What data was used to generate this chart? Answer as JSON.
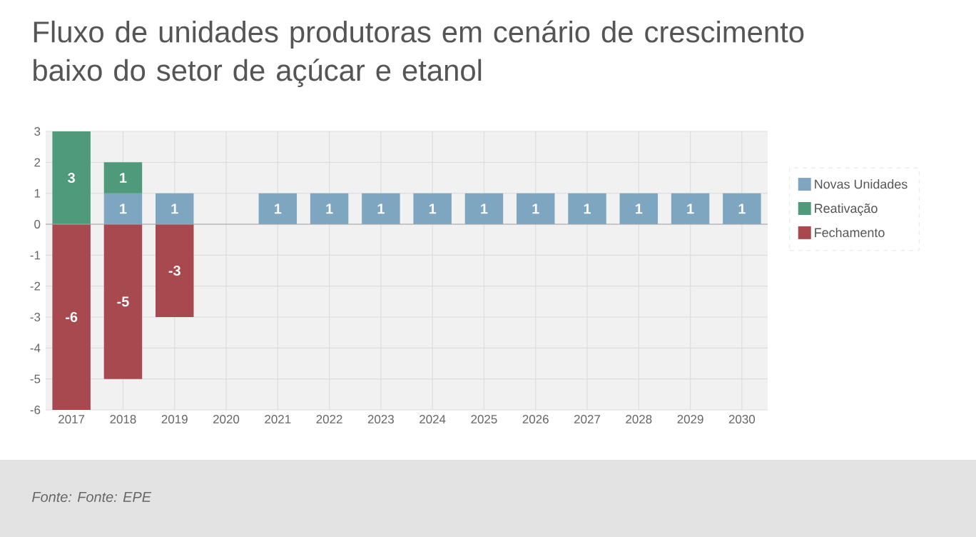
{
  "chart_data": {
    "type": "bar",
    "title": "Fluxo de unidades produtoras em cenário de crescimento baixo do setor de açúcar e etanol",
    "categories": [
      "2017",
      "2018",
      "2019",
      "2020",
      "2021",
      "2022",
      "2023",
      "2024",
      "2025",
      "2026",
      "2027",
      "2028",
      "2029",
      "2030"
    ],
    "series": [
      {
        "name": "Novas Unidades",
        "color": "#7ea6c0",
        "values": [
          null,
          1,
          1,
          null,
          1,
          1,
          1,
          1,
          1,
          1,
          1,
          1,
          1,
          1
        ],
        "value_labels": [
          null,
          "1",
          "1",
          null,
          "1",
          "1",
          "1",
          "1",
          "1",
          "1",
          "1",
          "1",
          "1",
          "1"
        ]
      },
      {
        "name": "Reativação",
        "color": "#4e9a7a",
        "values": [
          3,
          1,
          null,
          null,
          null,
          null,
          null,
          null,
          null,
          null,
          null,
          null,
          null,
          null
        ],
        "value_labels": [
          "3",
          "1",
          null,
          null,
          null,
          null,
          null,
          null,
          null,
          null,
          null,
          null,
          null,
          null
        ]
      },
      {
        "name": "Fechamento",
        "color": "#a8484f",
        "values": [
          -6,
          -5,
          -3,
          null,
          null,
          null,
          null,
          null,
          null,
          null,
          null,
          null,
          null,
          null
        ],
        "value_labels": [
          "-6",
          "-5",
          "-3",
          null,
          null,
          null,
          null,
          null,
          null,
          null,
          null,
          null,
          null,
          null
        ]
      }
    ],
    "stacked": true,
    "ylim": [
      -6,
      3
    ],
    "yticks": [
      -6,
      -5,
      -4,
      -3,
      -2,
      -1,
      0,
      1,
      2,
      3
    ],
    "grid": true,
    "legend": "right",
    "annotations": [
      "Fonte: Fonte: EPE"
    ]
  }
}
